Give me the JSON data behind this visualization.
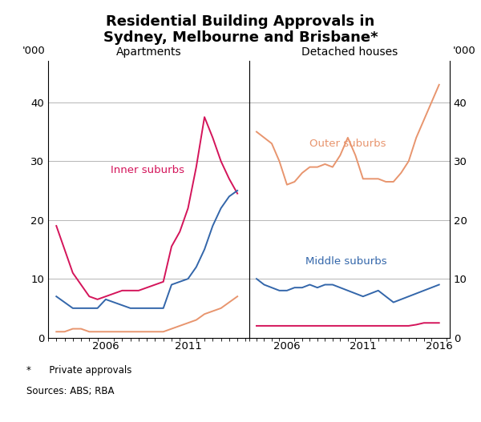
{
  "title_line1": "Residential Building Approvals in",
  "title_line2": "Sydney, Melbourne and Brisbane*",
  "left_panel_title": "Apartments",
  "right_panel_title": "Detached houses",
  "ylabel_left": "'000",
  "ylabel_right": "'000",
  "footnote_line1": "*      Private approvals",
  "footnote_line2": "Sources: ABS; RBA",
  "ylim": [
    0,
    47
  ],
  "yticks": [
    0,
    10,
    20,
    30,
    40
  ],
  "colors": {
    "inner": "#D4145A",
    "middle": "#3366AA",
    "outer": "#E8956E"
  },
  "apartments_years": [
    2003,
    2003.5,
    2004,
    2004.5,
    2005,
    2005.5,
    2006,
    2006.5,
    2007,
    2007.5,
    2008,
    2008.5,
    2009,
    2009.5,
    2010,
    2010.5,
    2011,
    2011.5,
    2012,
    2012.5,
    2013,
    2013.5,
    2014
  ],
  "apartments_inner": [
    19,
    15,
    11,
    9,
    7,
    6.5,
    7,
    7.5,
    8,
    8,
    8,
    8.5,
    9,
    9.5,
    15.5,
    18,
    22,
    29,
    37.5,
    34,
    30,
    27,
    24.5
  ],
  "apartments_middle": [
    7,
    6,
    5,
    5,
    5,
    5,
    6.5,
    6,
    5.5,
    5,
    5,
    5,
    5,
    5,
    9,
    9.5,
    10,
    12,
    15,
    19,
    22,
    24,
    25
  ],
  "apartments_outer": [
    1,
    1,
    1.5,
    1.5,
    1,
    1,
    1,
    1,
    1,
    1,
    1,
    1,
    1,
    1,
    1.5,
    2,
    2.5,
    3,
    4,
    4.5,
    5,
    6,
    7
  ],
  "detached_years": [
    2004,
    2004.5,
    2005,
    2005.5,
    2006,
    2006.5,
    2007,
    2007.5,
    2008,
    2008.5,
    2009,
    2009.5,
    2010,
    2010.5,
    2011,
    2011.5,
    2012,
    2012.5,
    2013,
    2013.5,
    2014,
    2014.5,
    2015,
    2015.5,
    2016
  ],
  "detached_inner": [
    2,
    2,
    2,
    2,
    2,
    2,
    2,
    2,
    2,
    2,
    2,
    2,
    2,
    2,
    2,
    2,
    2,
    2,
    2,
    2,
    2,
    2.2,
    2.5,
    2.5,
    2.5
  ],
  "detached_middle": [
    10,
    9,
    8.5,
    8,
    8,
    8.5,
    8.5,
    9,
    8.5,
    9,
    9,
    8.5,
    8,
    7.5,
    7,
    7.5,
    8,
    7,
    6,
    6.5,
    7,
    7.5,
    8,
    8.5,
    9
  ],
  "detached_outer": [
    35,
    34,
    33,
    30,
    26,
    26.5,
    28,
    29,
    29,
    29.5,
    29,
    31,
    34,
    31,
    27,
    27,
    27,
    26.5,
    26.5,
    28,
    30,
    34,
    37,
    40,
    43
  ]
}
